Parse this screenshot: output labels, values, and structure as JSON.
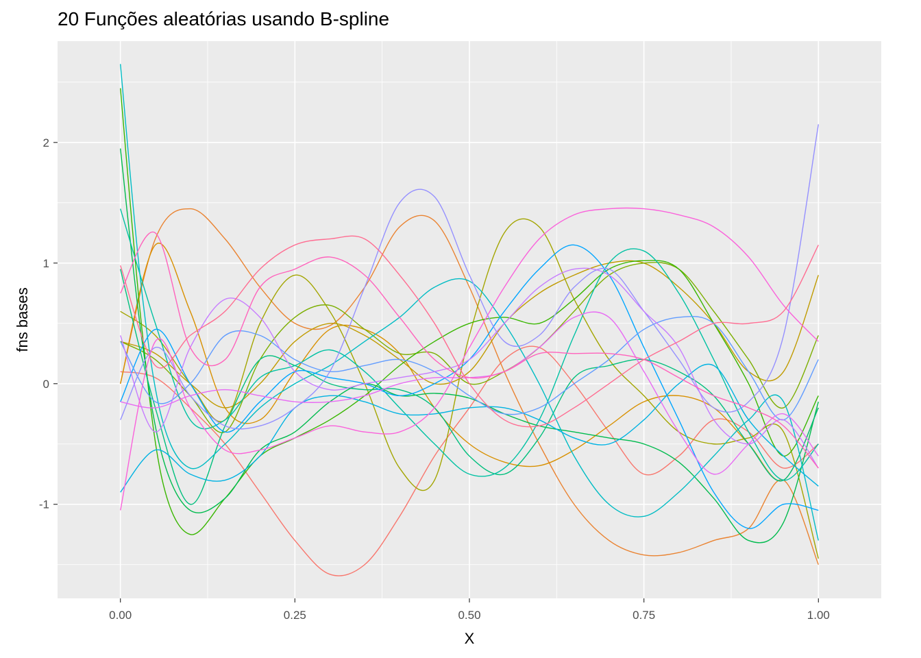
{
  "chart_data": {
    "type": "line",
    "title": "20 Funções aleatórias usando B-spline",
    "xlabel": "X",
    "ylabel": "fns bases",
    "xlim": [
      -0.09,
      1.09
    ],
    "ylim": [
      -1.78,
      2.84
    ],
    "x_ticks": [
      0,
      0.25,
      0.5,
      0.75,
      1
    ],
    "x_tick_labels": [
      "0.00",
      "0.25",
      "0.50",
      "0.75",
      "1.00"
    ],
    "y_ticks": [
      -1,
      0,
      1,
      2
    ],
    "y_tick_labels": [
      "-1",
      "0",
      "1",
      "2"
    ],
    "grid": true,
    "legend": "none",
    "series": [
      {
        "color": "#F8766D",
        "x": [
          0,
          0.05,
          0.1,
          0.15,
          0.2,
          0.25,
          0.3,
          0.35,
          0.4,
          0.45,
          0.5,
          0.55,
          0.6,
          0.65,
          0.7,
          0.75,
          0.8,
          0.85,
          0.9,
          0.95,
          1
        ],
        "values": [
          0.1,
          0.05,
          -0.2,
          -0.5,
          -0.9,
          -1.3,
          -1.58,
          -1.5,
          -1.1,
          -0.6,
          -0.2,
          0.2,
          0.3,
          0.0,
          -0.4,
          -0.75,
          -0.6,
          -0.3,
          -0.4,
          -0.7,
          -0.5
        ]
      },
      {
        "color": "#EA8331",
        "x": [
          0,
          0.05,
          0.1,
          0.15,
          0.2,
          0.25,
          0.3,
          0.35,
          0.4,
          0.45,
          0.5,
          0.55,
          0.6,
          0.65,
          0.7,
          0.75,
          0.8,
          0.85,
          0.9,
          0.95,
          1
        ],
        "values": [
          0.0,
          1.2,
          1.45,
          1.2,
          0.8,
          0.5,
          0.48,
          0.8,
          1.3,
          1.35,
          0.8,
          0.1,
          -0.5,
          -1.0,
          -1.3,
          -1.42,
          -1.4,
          -1.3,
          -1.2,
          -0.8,
          -1.5
        ]
      },
      {
        "color": "#D89000",
        "x": [
          0,
          0.05,
          0.1,
          0.15,
          0.2,
          0.25,
          0.3,
          0.35,
          0.4,
          0.45,
          0.5,
          0.55,
          0.6,
          0.65,
          0.7,
          0.75,
          0.8,
          0.85,
          0.9,
          0.95,
          1
        ],
        "values": [
          0.0,
          1.15,
          0.6,
          -0.2,
          -0.3,
          0.1,
          0.45,
          0.45,
          0.25,
          -0.2,
          -0.5,
          -0.65,
          -0.68,
          -0.55,
          -0.35,
          -0.15,
          -0.1,
          -0.2,
          -0.5,
          -0.8,
          -0.2
        ]
      },
      {
        "color": "#C09B00",
        "x": [
          0,
          0.05,
          0.1,
          0.15,
          0.2,
          0.25,
          0.3,
          0.35,
          0.4,
          0.45,
          0.5,
          0.55,
          0.6,
          0.65,
          0.7,
          0.75,
          0.8,
          0.85,
          0.9,
          0.95,
          1
        ],
        "values": [
          0.35,
          0.25,
          0.0,
          -0.2,
          0.0,
          0.35,
          0.5,
          0.4,
          0.2,
          0.0,
          0.1,
          0.5,
          0.75,
          0.9,
          1.0,
          1.0,
          0.8,
          0.5,
          0.1,
          0.1,
          0.9
        ]
      },
      {
        "color": "#A3A500",
        "x": [
          0,
          0.05,
          0.1,
          0.15,
          0.2,
          0.25,
          0.3,
          0.35,
          0.4,
          0.45,
          0.5,
          0.55,
          0.6,
          0.65,
          0.7,
          0.75,
          0.8,
          0.85,
          0.9,
          0.95,
          1
        ],
        "values": [
          0.6,
          0.4,
          0.0,
          -0.3,
          0.5,
          0.9,
          0.6,
          0.0,
          -0.7,
          -0.8,
          0.4,
          1.25,
          1.3,
          0.7,
          0.2,
          -0.1,
          -0.4,
          -0.5,
          -0.45,
          -0.4,
          -1.45
        ]
      },
      {
        "color": "#7CAE00",
        "x": [
          0,
          0.05,
          0.1,
          0.15,
          0.2,
          0.25,
          0.3,
          0.35,
          0.4,
          0.45,
          0.5,
          0.55,
          0.6,
          0.65,
          0.7,
          0.75,
          0.8,
          0.85,
          0.9,
          0.95,
          1
        ],
        "values": [
          0.35,
          0.2,
          -0.1,
          -0.4,
          0.2,
          0.55,
          0.65,
          0.45,
          0.25,
          0.25,
          0.0,
          0.1,
          0.3,
          0.6,
          0.9,
          1.0,
          0.95,
          0.6,
          0.2,
          -0.2,
          0.4
        ]
      },
      {
        "color": "#39B600",
        "x": [
          0,
          0.03,
          0.06,
          0.1,
          0.15,
          0.2,
          0.25,
          0.3,
          0.35,
          0.4,
          0.45,
          0.5,
          0.55,
          0.6,
          0.65,
          0.7,
          0.75,
          0.8,
          0.85,
          0.9,
          0.95,
          1
        ],
        "values": [
          2.45,
          0.5,
          -0.8,
          -1.25,
          -0.95,
          -0.6,
          -0.45,
          -0.3,
          -0.1,
          0.15,
          0.35,
          0.5,
          0.55,
          0.5,
          0.7,
          0.95,
          1.02,
          0.95,
          0.5,
          0.0,
          -0.6,
          -0.1
        ]
      },
      {
        "color": "#00BB4E",
        "x": [
          0,
          0.03,
          0.06,
          0.1,
          0.15,
          0.2,
          0.25,
          0.3,
          0.35,
          0.4,
          0.45,
          0.5,
          0.55,
          0.6,
          0.65,
          0.7,
          0.75,
          0.8,
          0.85,
          0.9,
          0.95,
          1
        ],
        "values": [
          1.95,
          0.4,
          -0.6,
          -1.05,
          -0.95,
          -0.55,
          -0.4,
          -0.15,
          0.0,
          -0.1,
          -0.08,
          -0.12,
          -0.25,
          -0.35,
          -0.4,
          -0.45,
          -0.5,
          -0.65,
          -0.95,
          -1.3,
          -1.15,
          -0.15
        ]
      },
      {
        "color": "#00BF7D",
        "x": [
          0,
          0.05,
          0.1,
          0.15,
          0.2,
          0.25,
          0.3,
          0.35,
          0.4,
          0.45,
          0.5,
          0.55,
          0.6,
          0.65,
          0.7,
          0.75,
          0.8,
          0.85,
          0.9,
          0.95,
          1
        ],
        "values": [
          0.95,
          -0.2,
          -1.0,
          -0.35,
          0.2,
          0.15,
          0.0,
          -0.05,
          -0.05,
          -0.2,
          -0.6,
          -0.75,
          -0.45,
          0.05,
          0.15,
          0.2,
          0.1,
          -0.1,
          -0.5,
          -0.8,
          -0.2
        ]
      },
      {
        "color": "#00C1A3",
        "x": [
          0,
          0.05,
          0.1,
          0.15,
          0.2,
          0.25,
          0.3,
          0.35,
          0.4,
          0.45,
          0.5,
          0.55,
          0.6,
          0.65,
          0.7,
          0.75,
          0.8,
          0.85,
          0.9,
          0.95,
          1
        ],
        "values": [
          1.45,
          0.5,
          -0.3,
          -0.3,
          0.05,
          0.15,
          0.28,
          0.1,
          -0.2,
          -0.5,
          -0.75,
          -0.7,
          -0.3,
          0.4,
          1.0,
          1.1,
          0.75,
          0.2,
          -0.4,
          -0.8,
          -0.5
        ]
      },
      {
        "color": "#00BCC4",
        "x": [
          0,
          0.03,
          0.06,
          0.1,
          0.15,
          0.2,
          0.25,
          0.3,
          0.35,
          0.4,
          0.45,
          0.5,
          0.55,
          0.6,
          0.65,
          0.7,
          0.75,
          0.8,
          0.85,
          0.9,
          0.95,
          1
        ],
        "values": [
          2.65,
          0.8,
          -0.3,
          -0.7,
          -0.5,
          -0.2,
          0.0,
          0.15,
          0.35,
          0.55,
          0.8,
          0.85,
          0.5,
          0.0,
          -0.6,
          -1.0,
          -1.1,
          -0.9,
          -0.6,
          -0.3,
          -0.15,
          -1.3
        ]
      },
      {
        "color": "#00B2E2",
        "x": [
          0,
          0.05,
          0.1,
          0.15,
          0.2,
          0.25,
          0.3,
          0.35,
          0.4,
          0.45,
          0.5,
          0.55,
          0.6,
          0.65,
          0.7,
          0.75,
          0.8,
          0.85,
          0.9,
          0.95,
          1
        ],
        "values": [
          -0.9,
          -0.55,
          -0.75,
          -0.8,
          -0.6,
          -0.2,
          -0.1,
          -0.15,
          -0.25,
          -0.25,
          -0.2,
          -0.2,
          -0.3,
          -0.45,
          -0.5,
          -0.3,
          0.0,
          0.15,
          -0.3,
          -0.6,
          -0.85
        ]
      },
      {
        "color": "#00A5FF",
        "x": [
          0,
          0.05,
          0.1,
          0.15,
          0.2,
          0.25,
          0.3,
          0.35,
          0.4,
          0.45,
          0.5,
          0.55,
          0.6,
          0.65,
          0.7,
          0.75,
          0.8,
          0.85,
          0.9,
          0.95,
          1
        ],
        "values": [
          -0.15,
          0.45,
          0.0,
          -0.4,
          -0.15,
          0.1,
          0.05,
          0.0,
          -0.1,
          0.0,
          0.2,
          0.6,
          0.95,
          1.15,
          0.9,
          0.3,
          -0.3,
          -0.9,
          -1.2,
          -1.0,
          -1.05
        ]
      },
      {
        "color": "#619CFF",
        "x": [
          0,
          0.05,
          0.1,
          0.15,
          0.2,
          0.25,
          0.3,
          0.35,
          0.4,
          0.45,
          0.5,
          0.55,
          0.6,
          0.65,
          0.7,
          0.75,
          0.8,
          0.85,
          0.9,
          0.95,
          1
        ],
        "values": [
          0.35,
          -0.15,
          0.0,
          0.4,
          0.4,
          0.2,
          0.1,
          0.15,
          0.2,
          0.1,
          -0.1,
          -0.25,
          -0.2,
          0.0,
          0.2,
          0.45,
          0.55,
          0.5,
          0.1,
          -0.3,
          0.2
        ]
      },
      {
        "color": "#9590FF",
        "x": [
          0,
          0.05,
          0.1,
          0.15,
          0.2,
          0.25,
          0.3,
          0.35,
          0.4,
          0.45,
          0.5,
          0.55,
          0.6,
          0.65,
          0.7,
          0.75,
          0.8,
          0.85,
          0.9,
          0.95,
          1
        ],
        "values": [
          -0.3,
          0.3,
          -0.1,
          -0.35,
          -0.35,
          -0.2,
          0.1,
          0.8,
          1.5,
          1.55,
          0.9,
          0.35,
          0.4,
          0.8,
          0.95,
          0.6,
          0.2,
          -0.2,
          -0.15,
          0.4,
          2.15
        ]
      },
      {
        "color": "#C77CFF",
        "x": [
          0,
          0.05,
          0.1,
          0.15,
          0.2,
          0.25,
          0.3,
          0.35,
          0.4,
          0.45,
          0.5,
          0.55,
          0.6,
          0.65,
          0.7,
          0.75,
          0.8,
          0.85,
          0.9,
          0.95,
          1
        ],
        "values": [
          0.4,
          -0.4,
          0.3,
          0.7,
          0.55,
          0.1,
          -0.05,
          0.0,
          0.05,
          0.1,
          0.2,
          0.5,
          0.8,
          0.95,
          0.9,
          0.6,
          0.3,
          -0.3,
          -0.5,
          -0.3,
          -0.7
        ]
      },
      {
        "color": "#E76BF3",
        "x": [
          0,
          0.05,
          0.1,
          0.15,
          0.2,
          0.25,
          0.3,
          0.35,
          0.4,
          0.45,
          0.5,
          0.55,
          0.6,
          0.65,
          0.7,
          0.75,
          0.8,
          0.85,
          0.9,
          0.95,
          1
        ],
        "values": [
          -0.15,
          -0.2,
          -0.1,
          -0.05,
          -0.1,
          -0.15,
          -0.15,
          -0.1,
          0.0,
          0.05,
          0.05,
          0.1,
          0.3,
          0.55,
          0.55,
          0.1,
          -0.4,
          -0.75,
          -0.5,
          -0.25,
          -0.6
        ]
      },
      {
        "color": "#FA62DB",
        "x": [
          0,
          0.05,
          0.1,
          0.15,
          0.2,
          0.25,
          0.3,
          0.35,
          0.4,
          0.45,
          0.5,
          0.55,
          0.6,
          0.65,
          0.7,
          0.75,
          0.8,
          0.85,
          0.9,
          0.95,
          1
        ],
        "values": [
          -1.05,
          0.35,
          -0.2,
          -0.55,
          -0.55,
          -0.45,
          -0.35,
          -0.4,
          -0.4,
          -0.2,
          0.3,
          0.8,
          1.2,
          1.4,
          1.45,
          1.45,
          1.4,
          1.3,
          1.05,
          0.65,
          0.35
        ]
      },
      {
        "color": "#FF62BC",
        "x": [
          0,
          0.05,
          0.1,
          0.15,
          0.2,
          0.25,
          0.3,
          0.35,
          0.4,
          0.45,
          0.5,
          0.55,
          0.6,
          0.65,
          0.7,
          0.75,
          0.8,
          0.85,
          0.9,
          0.95,
          1
        ],
        "values": [
          0.75,
          1.25,
          0.3,
          0.2,
          0.8,
          0.95,
          1.05,
          0.9,
          0.55,
          0.2,
          0.05,
          0.1,
          0.25,
          0.25,
          0.25,
          0.2,
          0.05,
          -0.1,
          -0.2,
          -0.35,
          -0.7
        ]
      },
      {
        "color": "#FF6C91",
        "x": [
          0,
          0.05,
          0.1,
          0.15,
          0.2,
          0.25,
          0.3,
          0.35,
          0.4,
          0.45,
          0.5,
          0.55,
          0.6,
          0.65,
          0.7,
          0.75,
          0.8,
          0.85,
          0.9,
          0.95,
          1
        ],
        "values": [
          0.98,
          0.15,
          0.4,
          0.6,
          0.95,
          1.15,
          1.2,
          1.2,
          0.9,
          0.5,
          0.0,
          -0.3,
          -0.35,
          -0.2,
          0.0,
          0.2,
          0.35,
          0.5,
          0.5,
          0.6,
          1.15
        ]
      }
    ]
  }
}
